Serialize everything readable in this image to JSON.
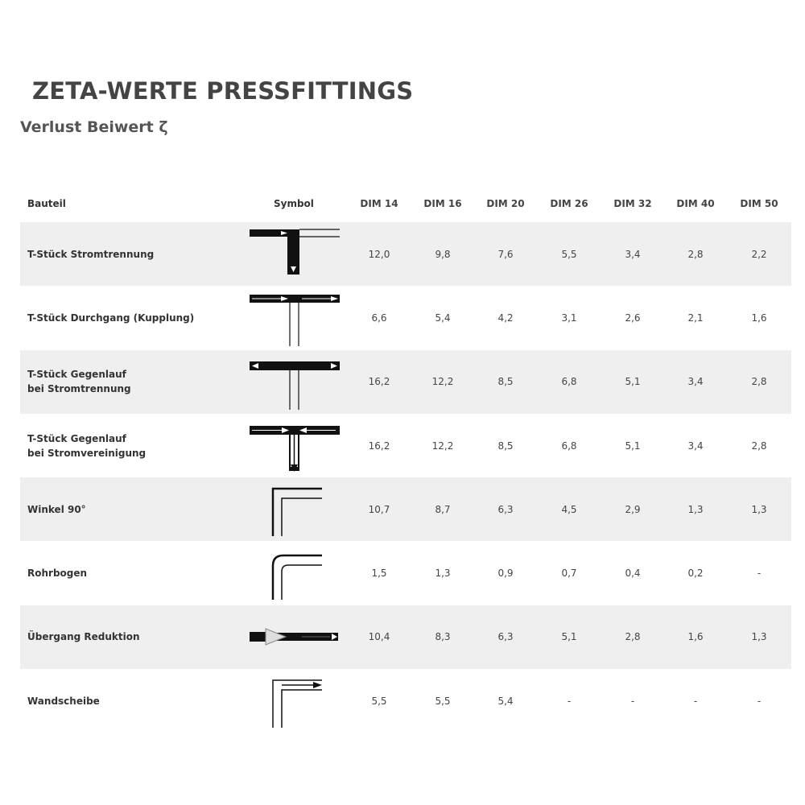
{
  "title": "ZETA-WERTE PRESSFITTINGS",
  "subtitle": "Verlust Beiwert ζ",
  "headers": [
    "Bauteil",
    "Symbol",
    "DIM 14",
    "DIM 16",
    "DIM 20",
    "DIM 26",
    "DIM 32",
    "DIM 40",
    "DIM 50"
  ],
  "rows": [
    {
      "name": "T-Stück Stromtrennung",
      "symbol": "tee-split-icon",
      "values": [
        "12,0",
        "9,8",
        "7,6",
        "5,5",
        "3,4",
        "2,8",
        "2,2"
      ]
    },
    {
      "name": "T-Stück Durchgang (Kupplung)",
      "symbol": "tee-through-icon",
      "values": [
        "6,6",
        "5,4",
        "4,2",
        "3,1",
        "2,6",
        "2,1",
        "1,6"
      ]
    },
    {
      "name": "T-Stück Gegenlauf\nbei Stromtrennung",
      "symbol": "tee-counter-split-icon",
      "values": [
        "16,2",
        "12,2",
        "8,5",
        "6,8",
        "5,1",
        "3,4",
        "2,8"
      ]
    },
    {
      "name": "T-Stück Gegenlauf\nbei Stromvereinigung",
      "symbol": "tee-counter-merge-icon",
      "values": [
        "16,2",
        "12,2",
        "8,5",
        "6,8",
        "5,1",
        "3,4",
        "2,8"
      ]
    },
    {
      "name": "Winkel 90°",
      "symbol": "elbow-90-icon",
      "values": [
        "10,7",
        "8,7",
        "6,3",
        "4,5",
        "2,9",
        "1,3",
        "1,3"
      ]
    },
    {
      "name": "Rohrbogen",
      "symbol": "pipe-bend-icon",
      "values": [
        "1,5",
        "1,3",
        "0,9",
        "0,7",
        "0,4",
        "0,2",
        "-"
      ]
    },
    {
      "name": "Übergang Reduktion",
      "symbol": "reducer-icon",
      "values": [
        "10,4",
        "8,3",
        "6,3",
        "5,1",
        "2,8",
        "1,6",
        "1,3"
      ]
    },
    {
      "name": "Wandscheibe",
      "symbol": "wall-plate-icon",
      "values": [
        "5,5",
        "5,5",
        "5,4",
        "-",
        "-",
        "-",
        "-"
      ]
    }
  ]
}
